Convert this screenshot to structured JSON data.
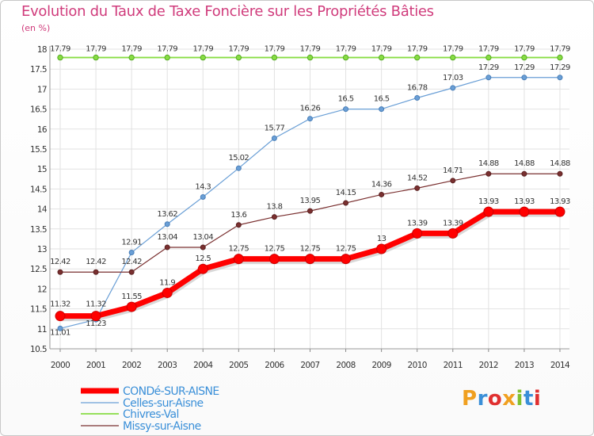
{
  "chart_data": {
    "type": "line",
    "title": "Evolution du Taux de Taxe Foncière sur les Propriétés Bâties",
    "ylabel": "(en %)",
    "x": [
      "2000",
      "2001",
      "2002",
      "2003",
      "2004",
      "2005",
      "2006",
      "2007",
      "2008",
      "2009",
      "2010",
      "2011",
      "2012",
      "2013",
      "2014"
    ],
    "y_ticks": [
      "10.5",
      "11",
      "11.5",
      "12",
      "12.5",
      "13",
      "13.5",
      "14",
      "14.5",
      "15",
      "15.5",
      "16",
      "16.5",
      "17",
      "17.5",
      "18"
    ],
    "ylim": [
      10.5,
      18
    ],
    "grid": true,
    "legend_position": "bottom-left",
    "series": [
      {
        "name": "CONDé-SUR-AISNE",
        "color": "#ff0000",
        "values": [
          11.32,
          11.32,
          11.55,
          11.9,
          12.5,
          12.75,
          12.75,
          12.75,
          12.75,
          13,
          13.39,
          13.39,
          13.93,
          13.93,
          13.93
        ],
        "labels": [
          "11.32",
          "11.32",
          "11.55",
          "11.9",
          "12.5",
          "12.75",
          "12.75",
          "12.75",
          "12.75",
          "13",
          "13.39",
          "13.39",
          "13.93",
          "13.93",
          "13.93"
        ]
      },
      {
        "name": "Celles-sur-Aisne",
        "color": "#6a9fd6",
        "values": [
          11.01,
          11.23,
          12.91,
          13.62,
          14.3,
          15.02,
          15.77,
          16.26,
          16.5,
          16.5,
          16.78,
          17.03,
          17.29,
          17.29,
          17.29
        ],
        "labels": [
          "11.01",
          "11.23",
          "12.91",
          "13.62",
          "14.3",
          "15.02",
          "15.77",
          "16.26",
          "16.5",
          "16.5",
          "16.78",
          "17.03",
          "17.29",
          "17.29",
          "17.29"
        ]
      },
      {
        "name": "Chivres-Val",
        "color": "#88dd44",
        "values": [
          17.79,
          17.79,
          17.79,
          17.79,
          17.79,
          17.79,
          17.79,
          17.79,
          17.79,
          17.79,
          17.79,
          17.79,
          17.79,
          17.79,
          17.79
        ],
        "labels": [
          "17.79",
          "17.79",
          "17.79",
          "17.79",
          "17.79",
          "17.79",
          "17.79",
          "17.79",
          "17.79",
          "17.79",
          "17.79",
          "17.79",
          "17.79",
          "17.79",
          "17.79"
        ]
      },
      {
        "name": "Missy-sur-Aisne",
        "color": "#7a3030",
        "values": [
          12.42,
          12.42,
          12.42,
          13.04,
          13.04,
          13.6,
          13.8,
          13.95,
          14.15,
          14.36,
          14.52,
          14.71,
          14.88,
          14.88,
          14.88
        ],
        "labels": [
          "12.42",
          "12.42",
          "12.42",
          "13.04",
          "13.04",
          "13.6",
          "13.8",
          "13.95",
          "14.15",
          "14.36",
          "14.52",
          "14.71",
          "14.88",
          "14.88",
          "14.88"
        ]
      }
    ]
  },
  "logo": {
    "letters": [
      "P",
      "r",
      "o",
      "x",
      "i",
      "t",
      "i"
    ],
    "colors": [
      "#f0a020",
      "#3a8fd8",
      "#e03030",
      "#f0a020",
      "#80c030",
      "#3a8fd8",
      "#e03030"
    ]
  }
}
